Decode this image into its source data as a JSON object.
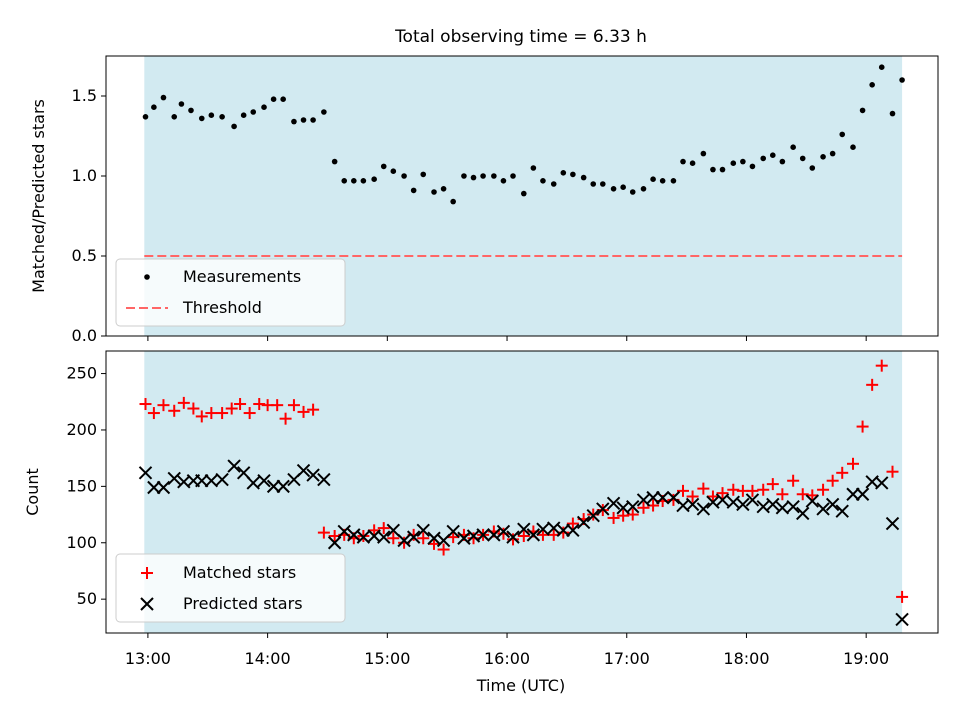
{
  "figure": {
    "title": "Total observing time = 6.33 h",
    "xlabel": "Time (UTC)"
  },
  "chart_data": [
    {
      "type": "scatter",
      "ylabel": "Matched/Predicted stars",
      "ylim": [
        0.0,
        1.75
      ],
      "yticks": [
        0.0,
        0.5,
        1.0,
        1.5
      ],
      "ytick_labels": [
        "0.0",
        "0.5",
        "1.0",
        "1.5"
      ],
      "xlim_hours": [
        12.65,
        19.6
      ],
      "shaded_span_hours": [
        12.97,
        19.3
      ],
      "shade_color": "#add8e6",
      "grid": false,
      "legend_position": "lower-left",
      "legend": [
        {
          "label": "Measurements",
          "marker": "dot",
          "color": "#000000"
        },
        {
          "label": "Threshold",
          "marker": "dashed-line",
          "color": "#ff6666"
        }
      ],
      "threshold": 0.5,
      "series": [
        {
          "name": "Measurements",
          "color": "#000000",
          "x": [
            12.98,
            13.05,
            13.13,
            13.22,
            13.28,
            13.36,
            13.45,
            13.53,
            13.62,
            13.72,
            13.8,
            13.88,
            13.97,
            14.05,
            14.13,
            14.22,
            14.3,
            14.38,
            14.47,
            14.56,
            14.64,
            14.72,
            14.8,
            14.89,
            14.97,
            15.05,
            15.14,
            15.22,
            15.3,
            15.39,
            15.47,
            15.55,
            15.64,
            15.72,
            15.8,
            15.89,
            15.97,
            16.05,
            16.14,
            16.22,
            16.3,
            16.39,
            16.47,
            16.55,
            16.64,
            16.72,
            16.8,
            16.89,
            16.97,
            17.05,
            17.14,
            17.22,
            17.3,
            17.39,
            17.47,
            17.55,
            17.64,
            17.72,
            17.8,
            17.89,
            17.97,
            18.05,
            18.14,
            18.22,
            18.3,
            18.39,
            18.47,
            18.55,
            18.64,
            18.72,
            18.8,
            18.89,
            18.97,
            19.05,
            19.13,
            19.22,
            19.3
          ],
          "y": [
            1.37,
            1.43,
            1.49,
            1.37,
            1.45,
            1.41,
            1.36,
            1.38,
            1.37,
            1.31,
            1.38,
            1.4,
            1.43,
            1.48,
            1.48,
            1.34,
            1.35,
            1.35,
            1.4,
            1.09,
            0.97,
            0.97,
            0.97,
            0.98,
            1.06,
            1.03,
            1.0,
            0.91,
            1.01,
            0.9,
            0.92,
            0.84,
            1.0,
            0.99,
            1.0,
            1.0,
            0.97,
            1.0,
            0.89,
            1.05,
            0.97,
            0.95,
            1.02,
            1.01,
            0.99,
            0.95,
            0.95,
            0.92,
            0.93,
            0.9,
            0.92,
            0.98,
            0.97,
            0.97,
            1.09,
            1.08,
            1.14,
            1.04,
            1.04,
            1.08,
            1.09,
            1.06,
            1.11,
            1.13,
            1.09,
            1.18,
            1.11,
            1.05,
            1.12,
            1.14,
            1.26,
            1.18,
            1.41,
            1.57,
            1.68,
            1.39,
            1.6
          ]
        }
      ]
    },
    {
      "type": "scatter",
      "ylabel": "Count",
      "ylim": [
        20,
        270
      ],
      "yticks": [
        50,
        100,
        150,
        200,
        250
      ],
      "ytick_labels": [
        "50",
        "100",
        "150",
        "200",
        "250"
      ],
      "xlim_hours": [
        12.65,
        19.6
      ],
      "xticks_hours": [
        13,
        14,
        15,
        16,
        17,
        18,
        19
      ],
      "xtick_labels": [
        "13:00",
        "14:00",
        "15:00",
        "16:00",
        "17:00",
        "18:00",
        "19:00"
      ],
      "shaded_span_hours": [
        12.97,
        19.3
      ],
      "shade_color": "#add8e6",
      "grid": false,
      "legend_position": "lower-left",
      "legend": [
        {
          "label": "Matched stars",
          "marker": "plus",
          "color": "#ff0000"
        },
        {
          "label": "Predicted stars",
          "marker": "x",
          "color": "#000000"
        }
      ],
      "series": [
        {
          "name": "Matched stars",
          "marker": "plus",
          "color": "#ff0000",
          "x": [
            12.98,
            13.05,
            13.13,
            13.22,
            13.3,
            13.38,
            13.45,
            13.53,
            13.62,
            13.7,
            13.77,
            13.85,
            13.93,
            14.0,
            14.08,
            14.15,
            14.22,
            14.3,
            14.38,
            14.47,
            14.56,
            14.64,
            14.72,
            14.8,
            14.89,
            14.97,
            15.05,
            15.14,
            15.22,
            15.3,
            15.39,
            15.47,
            15.55,
            15.64,
            15.72,
            15.8,
            15.89,
            15.97,
            16.05,
            16.14,
            16.22,
            16.3,
            16.39,
            16.47,
            16.55,
            16.64,
            16.72,
            16.8,
            16.89,
            16.97,
            17.05,
            17.14,
            17.22,
            17.3,
            17.39,
            17.47,
            17.55,
            17.64,
            17.72,
            17.8,
            17.89,
            17.97,
            18.05,
            18.14,
            18.22,
            18.3,
            18.39,
            18.47,
            18.55,
            18.64,
            18.72,
            18.8,
            18.89,
            18.97,
            19.05,
            19.13,
            19.22,
            19.3
          ],
          "y": [
            223,
            215,
            222,
            217,
            224,
            219,
            212,
            215,
            215,
            219,
            223,
            215,
            223,
            222,
            222,
            210,
            222,
            216,
            218,
            109,
            106,
            107,
            104,
            106,
            111,
            113,
            104,
            100,
            107,
            104,
            99,
            94,
            105,
            107,
            104,
            107,
            110,
            108,
            103,
            106,
            110,
            107,
            107,
            109,
            117,
            121,
            125,
            129,
            122,
            124,
            125,
            131,
            133,
            137,
            138,
            146,
            141,
            148,
            141,
            144,
            147,
            146,
            146,
            147,
            152,
            143,
            155,
            143,
            142,
            147,
            155,
            162,
            170,
            203,
            240,
            257,
            163,
            52
          ]
        },
        {
          "name": "Predicted stars",
          "marker": "x",
          "color": "#000000",
          "x": [
            12.98,
            13.05,
            13.13,
            13.22,
            13.3,
            13.38,
            13.45,
            13.53,
            13.62,
            13.72,
            13.8,
            13.88,
            13.97,
            14.05,
            14.13,
            14.22,
            14.3,
            14.38,
            14.47,
            14.56,
            14.64,
            14.72,
            14.8,
            14.89,
            14.97,
            15.05,
            15.14,
            15.22,
            15.3,
            15.39,
            15.47,
            15.55,
            15.64,
            15.72,
            15.8,
            15.89,
            15.97,
            16.05,
            16.14,
            16.22,
            16.3,
            16.39,
            16.47,
            16.55,
            16.64,
            16.72,
            16.8,
            16.89,
            16.97,
            17.05,
            17.14,
            17.22,
            17.3,
            17.39,
            17.47,
            17.55,
            17.64,
            17.72,
            17.8,
            17.89,
            17.97,
            18.05,
            18.14,
            18.22,
            18.3,
            18.39,
            18.47,
            18.55,
            18.64,
            18.72,
            18.8,
            18.89,
            18.97,
            19.05,
            19.13,
            19.22,
            19.3
          ],
          "y": [
            162,
            149,
            149,
            157,
            154,
            155,
            155,
            155,
            156,
            168,
            162,
            153,
            155,
            150,
            150,
            156,
            164,
            160,
            156,
            100,
            110,
            107,
            105,
            106,
            105,
            111,
            102,
            105,
            111,
            104,
            102,
            110,
            104,
            106,
            107,
            107,
            110,
            105,
            112,
            107,
            112,
            113,
            111,
            111,
            118,
            124,
            130,
            135,
            131,
            132,
            138,
            140,
            140,
            140,
            133,
            134,
            130,
            136,
            138,
            136,
            134,
            138,
            132,
            134,
            131,
            132,
            126,
            137,
            130,
            134,
            128,
            143,
            143,
            154,
            153,
            117,
            32
          ]
        }
      ]
    }
  ]
}
